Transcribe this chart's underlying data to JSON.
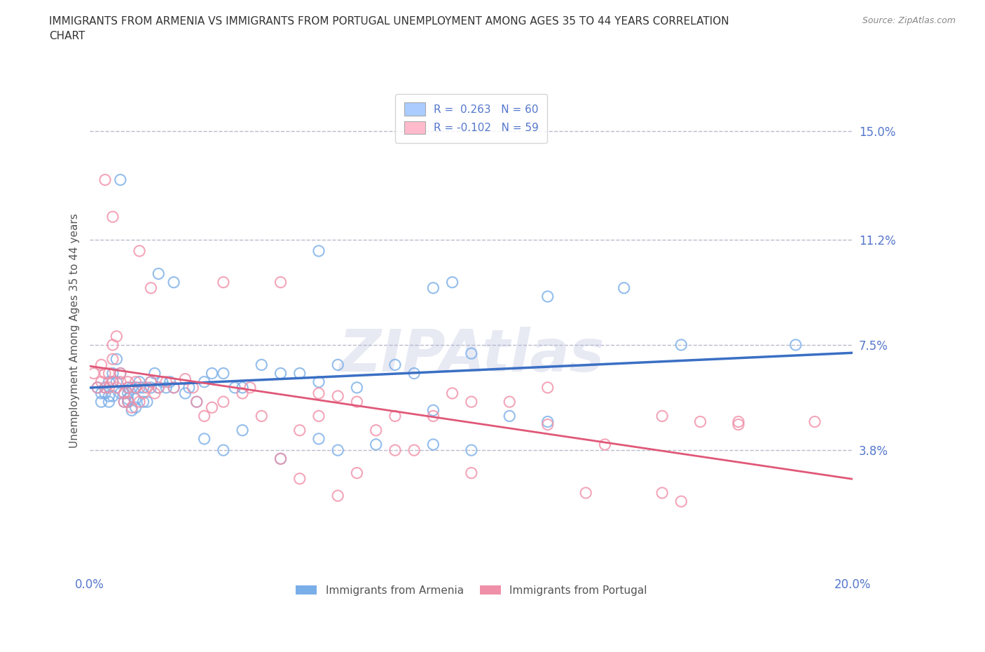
{
  "title": "IMMIGRANTS FROM ARMENIA VS IMMIGRANTS FROM PORTUGAL UNEMPLOYMENT AMONG AGES 35 TO 44 YEARS CORRELATION\nCHART",
  "source_text": "Source: ZipAtlas.com",
  "ylabel": "Unemployment Among Ages 35 to 44 years",
  "xlim": [
    0.0,
    0.2
  ],
  "ylim": [
    -0.005,
    0.165
  ],
  "x_ticks": [
    0.0,
    0.2
  ],
  "x_tick_labels": [
    "0.0%",
    "20.0%"
  ],
  "y_ticks_right": [
    0.038,
    0.075,
    0.112,
    0.15
  ],
  "y_tick_labels_right": [
    "3.8%",
    "7.5%",
    "11.2%",
    "15.0%"
  ],
  "grid_color": "#bbbbcc",
  "grid_style": "--",
  "watermark_text": "ZIPAtlas",
  "watermark_color": "#b0b8d8",
  "armenia_color": "#7aaee8",
  "portugal_color": "#f090a8",
  "armenia_line_color": "#3a6fc4",
  "portugal_line_color": "#e05878",
  "legend_armenia_label": "R =  0.263   N = 60",
  "legend_portugal_label": "R = -0.102   N = 59",
  "legend_armenia_patch_color": "#aaccff",
  "legend_portugal_patch_color": "#ffbbcc",
  "background_color": "#ffffff",
  "title_color": "#333333",
  "axis_label_color": "#555555",
  "tick_label_color": "#5577cc",
  "armenia_x": [
    0.002,
    0.003,
    0.003,
    0.004,
    0.004,
    0.005,
    0.005,
    0.005,
    0.006,
    0.006,
    0.006,
    0.007,
    0.007,
    0.008,
    0.008,
    0.009,
    0.009,
    0.01,
    0.01,
    0.01,
    0.01,
    0.011,
    0.011,
    0.012,
    0.012,
    0.012,
    0.013,
    0.013,
    0.014,
    0.014,
    0.015,
    0.016,
    0.016,
    0.017,
    0.018,
    0.019,
    0.02,
    0.021,
    0.022,
    0.025,
    0.026,
    0.028,
    0.03,
    0.032,
    0.035,
    0.038,
    0.04,
    0.045,
    0.05,
    0.055,
    0.06,
    0.065,
    0.07,
    0.08,
    0.085,
    0.09,
    0.1,
    0.14
  ],
  "armenia_y": [
    0.06,
    0.055,
    0.058,
    0.06,
    0.058,
    0.062,
    0.057,
    0.055,
    0.065,
    0.062,
    0.057,
    0.07,
    0.062,
    0.065,
    0.058,
    0.055,
    0.058,
    0.06,
    0.058,
    0.055,
    0.056,
    0.052,
    0.06,
    0.053,
    0.056,
    0.06,
    0.062,
    0.06,
    0.055,
    0.06,
    0.055,
    0.06,
    0.062,
    0.065,
    0.06,
    0.062,
    0.06,
    0.062,
    0.06,
    0.058,
    0.06,
    0.055,
    0.062,
    0.065,
    0.065,
    0.06,
    0.06,
    0.068,
    0.065,
    0.065,
    0.062,
    0.068,
    0.06,
    0.068,
    0.065,
    0.052,
    0.072,
    0.095
  ],
  "armenia_extra_x": [
    0.008,
    0.018,
    0.022,
    0.06,
    0.09,
    0.095,
    0.12,
    0.155,
    0.185
  ],
  "armenia_extra_y": [
    0.133,
    0.1,
    0.097,
    0.108,
    0.095,
    0.097,
    0.092,
    0.075,
    0.075
  ],
  "armenia_low_x": [
    0.03,
    0.035,
    0.04,
    0.05,
    0.06,
    0.065,
    0.075,
    0.09,
    0.1,
    0.11,
    0.12
  ],
  "armenia_low_y": [
    0.042,
    0.038,
    0.045,
    0.035,
    0.042,
    0.038,
    0.04,
    0.04,
    0.038,
    0.05,
    0.048
  ],
  "portugal_x": [
    0.001,
    0.002,
    0.003,
    0.003,
    0.004,
    0.004,
    0.005,
    0.005,
    0.006,
    0.006,
    0.006,
    0.007,
    0.007,
    0.008,
    0.008,
    0.009,
    0.009,
    0.01,
    0.01,
    0.01,
    0.011,
    0.012,
    0.012,
    0.013,
    0.014,
    0.015,
    0.016,
    0.017,
    0.018,
    0.02,
    0.022,
    0.025,
    0.027,
    0.028,
    0.03,
    0.032,
    0.035,
    0.04,
    0.042,
    0.045,
    0.05,
    0.055,
    0.06,
    0.065,
    0.07,
    0.075,
    0.08,
    0.09,
    0.1,
    0.11,
    0.12,
    0.135,
    0.15,
    0.16,
    0.17,
    0.19
  ],
  "portugal_y": [
    0.065,
    0.06,
    0.062,
    0.068,
    0.06,
    0.065,
    0.06,
    0.065,
    0.075,
    0.07,
    0.062,
    0.078,
    0.06,
    0.065,
    0.062,
    0.055,
    0.058,
    0.062,
    0.06,
    0.055,
    0.053,
    0.06,
    0.062,
    0.055,
    0.058,
    0.06,
    0.062,
    0.058,
    0.06,
    0.062,
    0.06,
    0.063,
    0.06,
    0.055,
    0.05,
    0.053,
    0.055,
    0.058,
    0.06,
    0.05,
    0.035,
    0.045,
    0.058,
    0.057,
    0.055,
    0.045,
    0.05,
    0.05,
    0.055,
    0.055,
    0.047,
    0.04,
    0.05,
    0.048,
    0.047,
    0.048
  ],
  "portugal_extra_x": [
    0.004,
    0.006,
    0.013,
    0.016,
    0.035,
    0.05,
    0.06,
    0.08,
    0.095,
    0.12,
    0.15,
    0.17
  ],
  "portugal_extra_y": [
    0.133,
    0.12,
    0.108,
    0.095,
    0.097,
    0.097,
    0.05,
    0.038,
    0.058,
    0.06,
    0.023,
    0.048
  ],
  "portugal_low_x": [
    0.055,
    0.065,
    0.07,
    0.085,
    0.1,
    0.13,
    0.155
  ],
  "portugal_low_y": [
    0.028,
    0.022,
    0.03,
    0.038,
    0.03,
    0.023,
    0.02
  ]
}
